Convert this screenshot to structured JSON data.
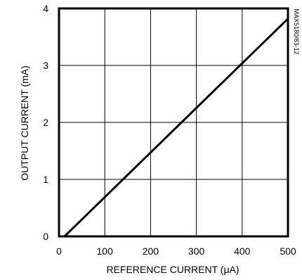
{
  "chart_data": {
    "type": "line",
    "title": "",
    "xlabel": "REFERENCE CURRENT (μA)",
    "ylabel": "OUTPUT CURRENT (mA)",
    "xlim": [
      0,
      500
    ],
    "ylim": [
      0,
      4
    ],
    "xticks": [
      "0",
      "100",
      "200",
      "300",
      "400",
      "500"
    ],
    "yticks": [
      "0",
      "1",
      "2",
      "3",
      "4"
    ],
    "grid": true,
    "series": [
      {
        "x": [
          12,
          500
        ],
        "y": [
          0,
          3.82
        ],
        "color": "#000000"
      }
    ],
    "annotation": "MAX5180/83-12"
  }
}
